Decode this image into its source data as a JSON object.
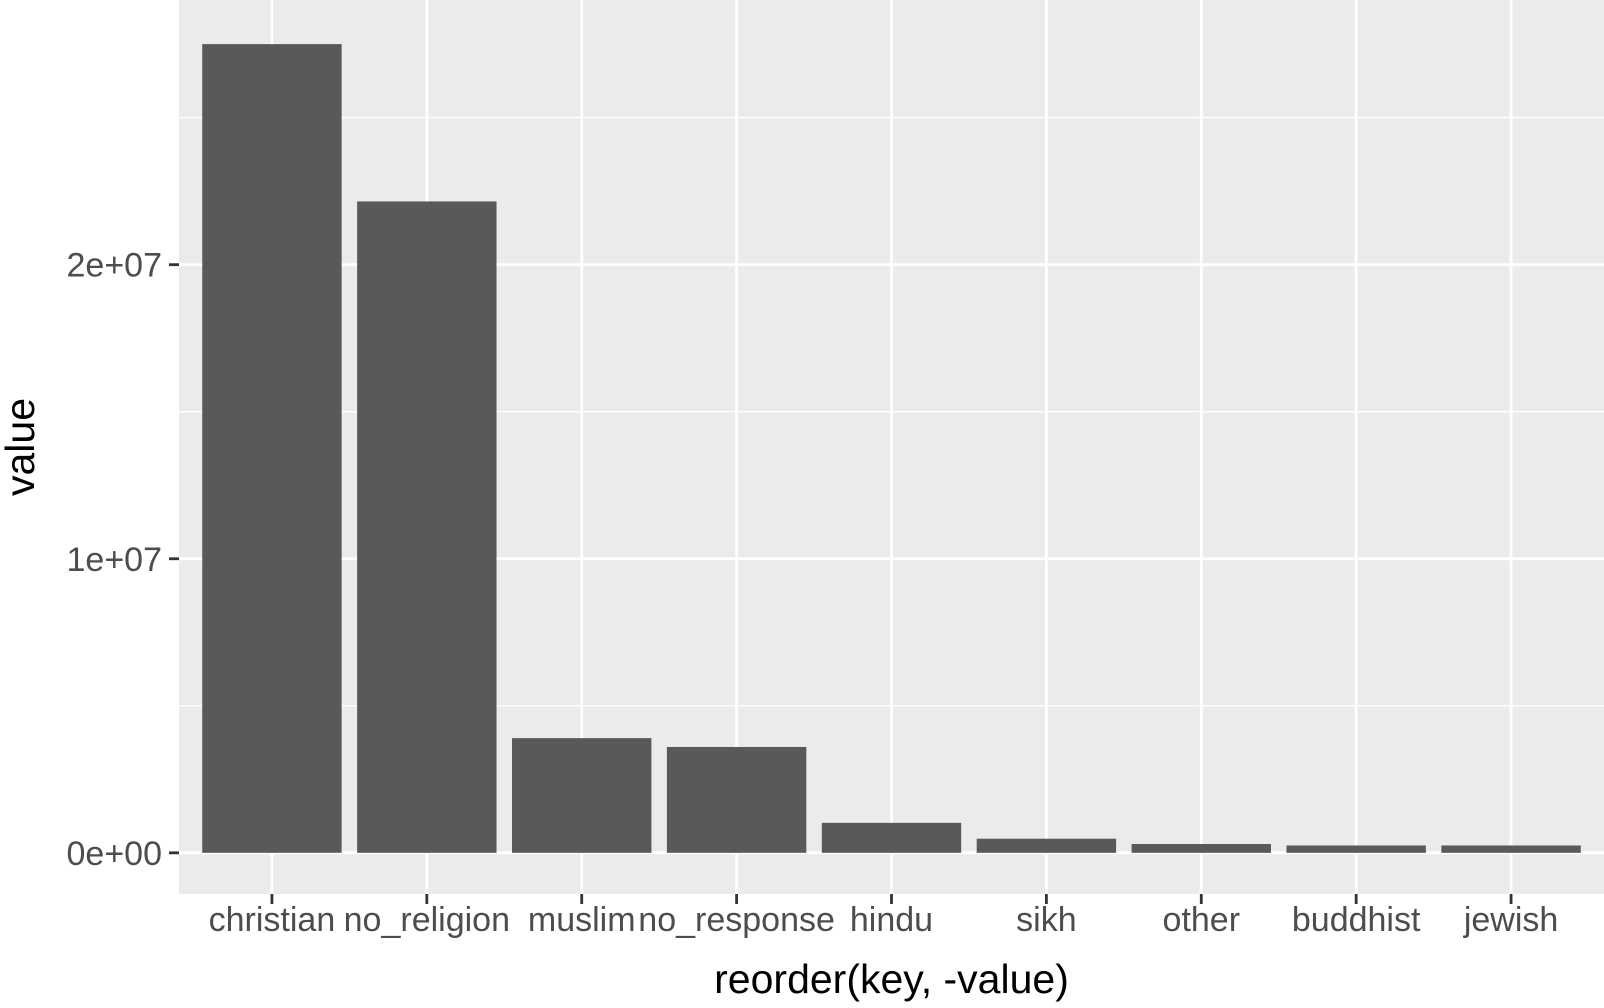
{
  "chart_data": {
    "type": "bar",
    "title": "",
    "xlabel": "reorder(key, -value)",
    "ylabel": "value",
    "categories": [
      "christian",
      "no_religion",
      "muslim",
      "no_response",
      "hindu",
      "sikh",
      "other",
      "buddhist",
      "jewish"
    ],
    "values": [
      27500000,
      22150000,
      3900000,
      3600000,
      1020000,
      480000,
      300000,
      250000,
      250000
    ],
    "ylim": [
      -1400000,
      29000000
    ],
    "yticks": [
      0,
      10000000,
      20000000
    ],
    "ytick_labels": [
      "0e+00",
      "1e+07",
      "2e+07"
    ],
    "grid": true,
    "legend": "none",
    "colors": {
      "panel_background": "#ebebeb",
      "grid_line": "#ffffff",
      "bar_fill": "#595959",
      "tick_text": "#4d4d4d",
      "axis_title": "#000000"
    }
  }
}
